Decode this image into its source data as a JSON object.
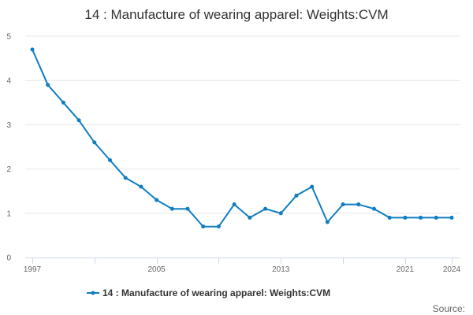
{
  "chart_data": {
    "type": "line",
    "title": "14 : Manufacture of wearing apparel: Weights:CVM",
    "xlabel": "",
    "ylabel": "",
    "x": [
      1997,
      1998,
      1999,
      2000,
      2001,
      2002,
      2003,
      2004,
      2005,
      2006,
      2007,
      2008,
      2009,
      2010,
      2011,
      2012,
      2013,
      2014,
      2015,
      2016,
      2017,
      2018,
      2019,
      2020,
      2021,
      2022,
      2023,
      2024
    ],
    "x_tick_labels": [
      "1997",
      "2005",
      "2013",
      "2021",
      "2024"
    ],
    "xlim": [
      1997,
      2024
    ],
    "ylim": [
      0,
      5
    ],
    "y_ticks": [
      "0",
      "1",
      "2",
      "3",
      "4",
      "5"
    ],
    "grid": true,
    "legend_position": "bottom-center",
    "series": [
      {
        "name": "14 : Manufacture of wearing apparel: Weights:CVM",
        "color": "#0f7dc0",
        "values": [
          4.7,
          3.9,
          3.5,
          3.1,
          2.6,
          2.2,
          1.8,
          1.6,
          1.3,
          1.1,
          1.1,
          0.7,
          0.7,
          1.2,
          0.9,
          1.1,
          1.0,
          1.4,
          1.6,
          0.8,
          1.2,
          1.2,
          1.1,
          0.9,
          0.9,
          0.9,
          0.9,
          0.9
        ]
      }
    ],
    "source_label": "Source:"
  }
}
